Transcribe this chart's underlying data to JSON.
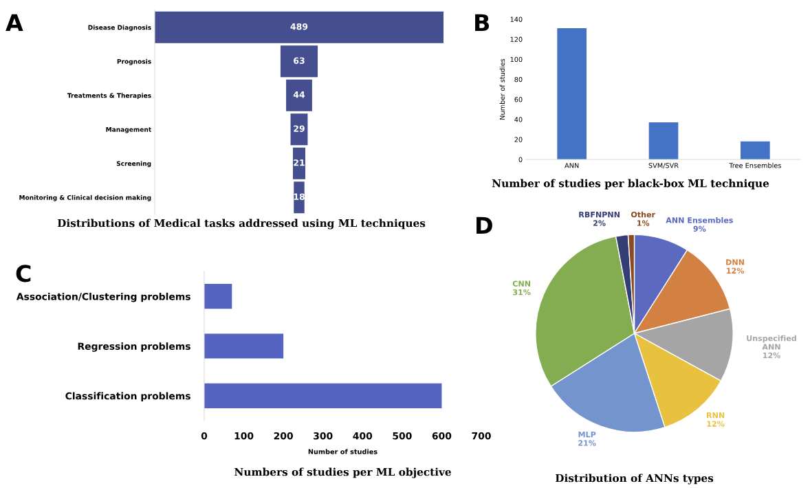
{
  "chart_data": [
    {
      "type": "other",
      "title": "Distributions of Medical tasks addressed using ML techniques",
      "annotations": [
        "A"
      ],
      "categories": [
        "Disease Diagnosis",
        "Prognosis",
        "Treatments & Therapies",
        "Management",
        "Screening",
        "Monitoring & Clinical decision making"
      ],
      "values": [
        489,
        63,
        44,
        29,
        21,
        18
      ],
      "color": "#454e8f",
      "data_labels": true
    },
    {
      "type": "bar",
      "title": "Number of studies per black-box ML technique",
      "ylabel": "Number of studies",
      "annotations": [
        "B"
      ],
      "categories": [
        "ANN",
        "SVM/SVR",
        "Tree Ensembles"
      ],
      "values": [
        131,
        37,
        18
      ],
      "color": "#4472c4",
      "ylim": [
        0,
        140
      ],
      "yticks": [
        0,
        20,
        40,
        60,
        80,
        100,
        120,
        140
      ]
    },
    {
      "type": "bar",
      "orientation": "horizontal",
      "title": "Numbers of studies per ML objective",
      "xlabel": "Number of studies",
      "annotations": [
        "C"
      ],
      "categories": [
        "Association/Clustering problems",
        "Regression problems",
        "Classification problems"
      ],
      "values": [
        70,
        200,
        600
      ],
      "color": "#5563c1",
      "xlim": [
        0,
        700
      ],
      "xticks": [
        0,
        100,
        200,
        300,
        400,
        500,
        600,
        700
      ]
    },
    {
      "type": "pie",
      "title": "Distribution of ANNs types",
      "annotations": [
        "D"
      ],
      "categories": [
        "ANN Ensembles",
        "DNN",
        "Unspecified ANN",
        "RNN",
        "MLP",
        "CNN",
        "RBFNPNN",
        "Other"
      ],
      "values": [
        9,
        12,
        12,
        12,
        21,
        31,
        2,
        1
      ],
      "value_labels": [
        "9%",
        "12%",
        "12%",
        "12%",
        "21%",
        "31%",
        "2%",
        "1%"
      ],
      "colors": [
        "#5b6abf",
        "#d28143",
        "#a5a5a5",
        "#e8c13f",
        "#7494ce",
        "#84ad52",
        "#353e72",
        "#8b4a20"
      ]
    }
  ]
}
